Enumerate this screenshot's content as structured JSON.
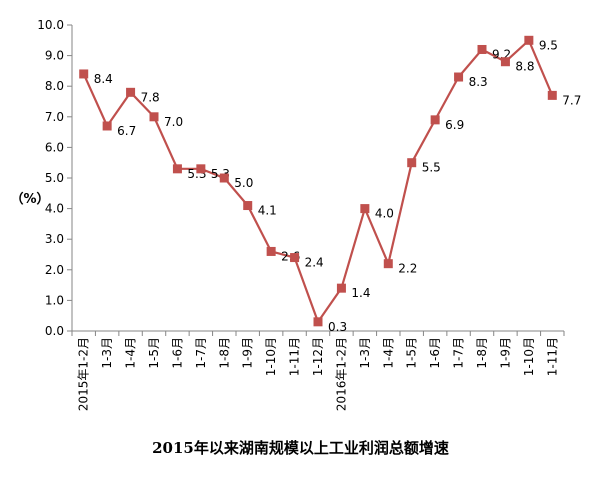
{
  "chart_data": {
    "type": "line",
    "title": "2015年以来湖南规模以上工业利润总额增速",
    "ylabel": "（%）",
    "xlabel": "",
    "ylim": [
      0,
      10
    ],
    "yticks": [
      "0.0",
      "1.0",
      "2.0",
      "3.0",
      "4.0",
      "5.0",
      "6.0",
      "7.0",
      "8.0",
      "9.0",
      "10.0"
    ],
    "categories": [
      "2015年1-2月",
      "1-3月",
      "1-4月",
      "1-5月",
      "1-6月",
      "1-7月",
      "1-8月",
      "1-9月",
      "1-10月",
      "1-11月",
      "1-12月",
      "2016年1-2月",
      "1-3月",
      "1-4月",
      "1-5月",
      "1-6月",
      "1-7月",
      "1-8月",
      "1-9月",
      "1-10月",
      "1-11月"
    ],
    "series": [
      {
        "values": [
          8.4,
          6.7,
          7.8,
          7.0,
          5.3,
          5.3,
          5.0,
          4.1,
          2.6,
          2.4,
          0.3,
          1.4,
          4.0,
          2.2,
          5.5,
          6.9,
          8.3,
          9.2,
          8.8,
          9.5,
          7.7
        ],
        "labels": [
          "8.4",
          "6.7",
          "7.8",
          "7.0",
          "5.3",
          "5.3",
          "5.0",
          "4.1",
          "2.6",
          "2.4",
          "0.3",
          "1.4",
          "4.0",
          "2.2",
          "5.5",
          "6.9",
          "8.3",
          "9.2",
          "8.8",
          "9.5",
          "7.7"
        ]
      }
    ],
    "colors": {
      "line": "#c0504d",
      "marker": "#c0504d",
      "axis": "#868686",
      "text": "#000000"
    },
    "grid": false,
    "legend": "none"
  }
}
